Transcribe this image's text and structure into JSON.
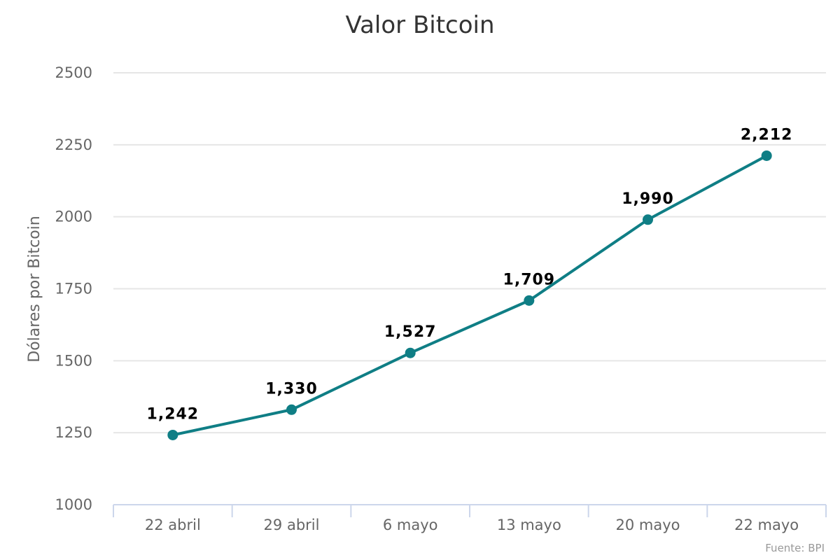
{
  "chart_data": {
    "type": "line",
    "title": "Valor Bitcoin",
    "ylabel": "Dólares por Bitcoin",
    "xlabel": "",
    "categories": [
      "22 abril",
      "29 abril",
      "6 mayo",
      "13 mayo",
      "20 mayo",
      "22 mayo"
    ],
    "values": [
      1242,
      1330,
      1527,
      1709,
      1990,
      2212
    ],
    "data_labels": [
      "1,242",
      "1,330",
      "1,527",
      "1,709",
      "1,990",
      "2,212"
    ],
    "ylim": [
      1000,
      2500
    ],
    "yticks": [
      1000,
      1250,
      1500,
      1750,
      2000,
      2250,
      2500
    ],
    "ytick_labels": [
      "1000",
      "1250",
      "1500",
      "1750",
      "2000",
      "2250",
      "2500"
    ],
    "grid": true,
    "legend": "none",
    "series_color": "#0f7e85",
    "credits": "Fuente: BPI"
  }
}
